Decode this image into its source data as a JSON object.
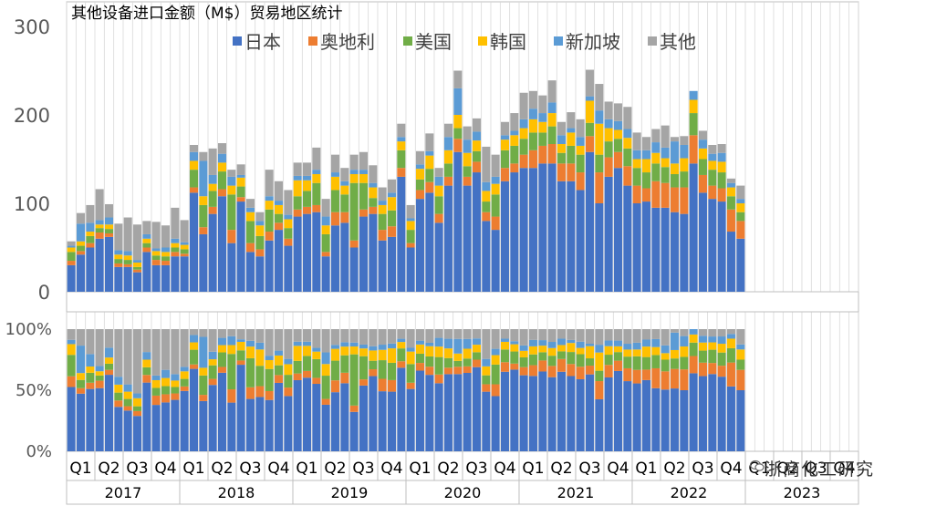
{
  "chart_data": [
    {
      "type": "bar",
      "stacked": true,
      "title": "其他设备进口金额（M$）贸易地区统计",
      "ylim": [
        0,
        300
      ],
      "yticks": [
        0,
        100,
        200,
        300
      ],
      "ytick_labels": [
        "0",
        "100",
        "200",
        "300"
      ],
      "grid": "vertical month separators",
      "legend_position": "top",
      "colors": {
        "日本": "#4472c4",
        "奥地利": "#ed7d31",
        "美国": "#70ad47",
        "韩国": "#ffc000",
        "新加坡": "#5b9bd5",
        "其他": "#a5a5a5"
      },
      "x_months": [
        "2017-01",
        "2017-02",
        "2017-03",
        "2017-04",
        "2017-05",
        "2017-06",
        "2017-07",
        "2017-08",
        "2017-09",
        "2017-10",
        "2017-11",
        "2017-12",
        "2018-01",
        "2018-02",
        "2018-03",
        "2018-04",
        "2018-05",
        "2018-06",
        "2018-07",
        "2018-08",
        "2018-09",
        "2018-10",
        "2018-11",
        "2018-12",
        "2019-01",
        "2019-02",
        "2019-03",
        "2019-04",
        "2019-05",
        "2019-06",
        "2019-07",
        "2019-08",
        "2019-09",
        "2019-10",
        "2019-11",
        "2019-12",
        "2020-01",
        "2020-02",
        "2020-03",
        "2020-04",
        "2020-05",
        "2020-06",
        "2020-07",
        "2020-08",
        "2020-09",
        "2020-10",
        "2020-11",
        "2020-12",
        "2021-01",
        "2021-02",
        "2021-03",
        "2021-04",
        "2021-05",
        "2021-06",
        "2021-07",
        "2021-08",
        "2021-09",
        "2021-10",
        "2021-11",
        "2021-12",
        "2022-01",
        "2022-02",
        "2022-03",
        "2022-04",
        "2022-05",
        "2022-06",
        "2022-07",
        "2022-08",
        "2022-09",
        "2022-10",
        "2022-11",
        "2022-12"
      ],
      "quarters": [
        "Q1",
        "Q2",
        "Q3",
        "Q4",
        "Q1",
        "Q2",
        "Q3",
        "Q4",
        "Q1",
        "Q2",
        "Q3",
        "Q4",
        "Q1",
        "Q2",
        "Q3",
        "Q4",
        "Q1",
        "Q2",
        "Q3",
        "Q4",
        "Q1",
        "Q2",
        "Q3",
        "Q4",
        "Q1",
        "Q2",
        "Q3",
        "Q4"
      ],
      "years": [
        "2017",
        "2018",
        "2019",
        "2020",
        "2021",
        "2022",
        "2023"
      ],
      "series": [
        {
          "name": "日本",
          "values": [
            30,
            42,
            50,
            60,
            62,
            28,
            28,
            22,
            45,
            30,
            30,
            40,
            40,
            112,
            65,
            88,
            108,
            55,
            102,
            45,
            40,
            58,
            70,
            52,
            85,
            88,
            90,
            40,
            75,
            78,
            50,
            85,
            88,
            58,
            62,
            130,
            50,
            105,
            112,
            78,
            120,
            158,
            120,
            135,
            80,
            70,
            125,
            135,
            140,
            140,
            145,
            145,
            125,
            125,
            115,
            158,
            100,
            130,
            140,
            120,
            100,
            102,
            95,
            95,
            90,
            88,
            145,
            112,
            105,
            102,
            68,
            60
          ]
        },
        {
          "name": "奥地利",
          "values": [
            5,
            4,
            5,
            7,
            4,
            4,
            3,
            3,
            5,
            6,
            5,
            5,
            3,
            6,
            8,
            8,
            8,
            15,
            5,
            10,
            8,
            10,
            8,
            8,
            8,
            8,
            8,
            5,
            15,
            12,
            8,
            8,
            8,
            12,
            12,
            10,
            5,
            10,
            12,
            10,
            10,
            15,
            10,
            12,
            10,
            15,
            15,
            10,
            15,
            20,
            20,
            22,
            20,
            20,
            20,
            18,
            35,
            22,
            18,
            22,
            20,
            15,
            30,
            28,
            28,
            30,
            32,
            20,
            15,
            15,
            25,
            20
          ]
        },
        {
          "name": "美国",
          "values": [
            10,
            6,
            8,
            5,
            5,
            5,
            5,
            3,
            5,
            5,
            5,
            5,
            5,
            20,
            25,
            18,
            20,
            40,
            12,
            25,
            15,
            25,
            10,
            12,
            15,
            18,
            25,
            20,
            25,
            20,
            65,
            30,
            10,
            18,
            18,
            20,
            15,
            12,
            15,
            20,
            15,
            12,
            12,
            12,
            12,
            25,
            20,
            20,
            18,
            20,
            15,
            20,
            12,
            20,
            20,
            15,
            20,
            18,
            15,
            20,
            20,
            18,
            20,
            18,
            15,
            18,
            25,
            18,
            18,
            18,
            15,
            10
          ]
        },
        {
          "name": "韩国",
          "values": [
            5,
            5,
            5,
            4,
            5,
            5,
            5,
            5,
            5,
            5,
            5,
            5,
            5,
            10,
            10,
            8,
            10,
            10,
            10,
            10,
            12,
            10,
            10,
            10,
            18,
            12,
            10,
            10,
            15,
            10,
            10,
            10,
            12,
            10,
            15,
            10,
            10,
            12,
            15,
            12,
            15,
            15,
            15,
            12,
            12,
            12,
            12,
            12,
            12,
            15,
            12,
            15,
            10,
            15,
            10,
            25,
            35,
            15,
            10,
            12,
            10,
            15,
            12,
            10,
            12,
            15,
            15,
            12,
            10,
            12,
            10,
            10
          ]
        },
        {
          "name": "新加坡",
          "values": [
            2,
            20,
            10,
            5,
            8,
            5,
            5,
            3,
            5,
            3,
            5,
            5,
            3,
            10,
            40,
            10,
            10,
            10,
            3,
            5,
            5,
            5,
            5,
            5,
            5,
            5,
            5,
            10,
            5,
            5,
            5,
            5,
            5,
            5,
            5,
            5,
            3,
            5,
            5,
            10,
            15,
            30,
            15,
            10,
            10,
            8,
            5,
            5,
            10,
            12,
            10,
            12,
            10,
            5,
            10,
            5,
            15,
            10,
            10,
            10,
            10,
            10,
            12,
            12,
            25,
            15,
            10,
            10,
            8,
            10,
            5,
            5
          ]
        },
        {
          "name": "其他",
          "values": [
            5,
            12,
            20,
            35,
            15,
            30,
            38,
            40,
            15,
            30,
            25,
            35,
            25,
            8,
            10,
            30,
            12,
            8,
            12,
            10,
            10,
            30,
            22,
            28,
            15,
            15,
            25,
            20,
            20,
            15,
            17,
            20,
            20,
            15,
            15,
            15,
            15,
            15,
            20,
            10,
            15,
            20,
            15,
            15,
            40,
            25,
            15,
            20,
            30,
            20,
            20,
            25,
            15,
            18,
            20,
            30,
            30,
            20,
            20,
            25,
            20,
            15,
            15,
            25,
            5,
            10,
            0,
            10,
            10,
            10,
            5,
            15
          ]
        }
      ]
    },
    {
      "type": "bar",
      "stacked": true,
      "percent": true,
      "ylim": [
        0,
        100
      ],
      "yticks": [
        0,
        50,
        100
      ],
      "ytick_labels": [
        "0%",
        "50%",
        "100%"
      ]
    }
  ],
  "watermark": "浙商化工研究",
  "colors": {
    "axis": "#bfbfbf",
    "grid": "#d9d9d9",
    "tick_text": "#595959"
  }
}
